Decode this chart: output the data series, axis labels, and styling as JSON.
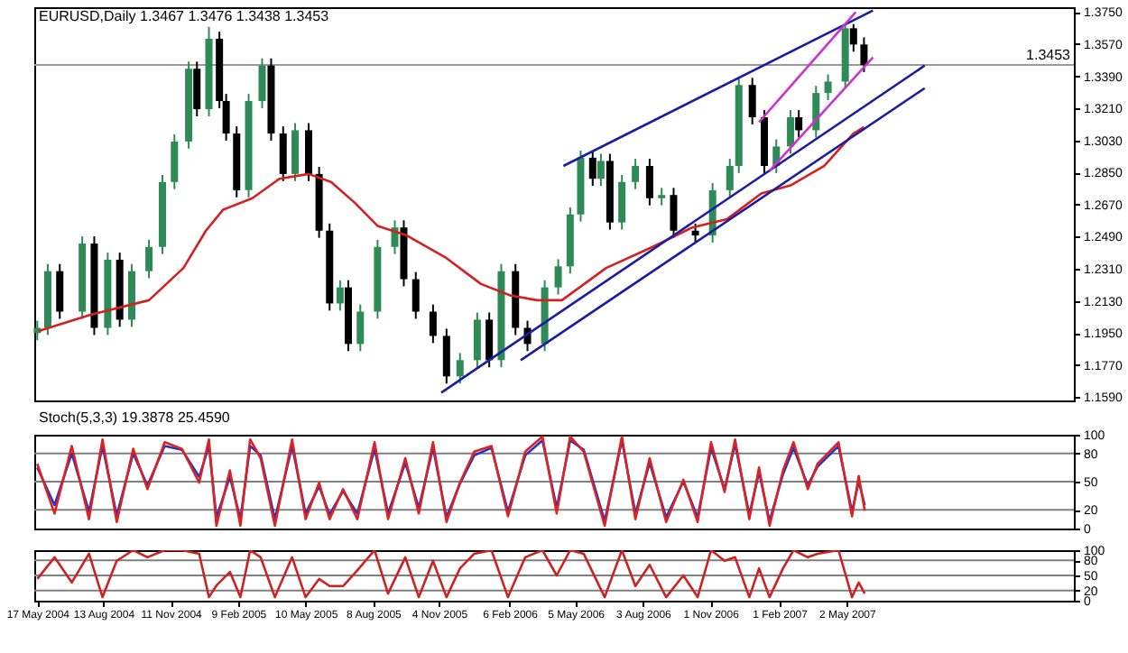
{
  "chart_data": [
    {
      "type": "candlestick",
      "title": "EURUSD,Daily  1.3467 1.3476 1.3438 1.3453",
      "tick_labels": "y",
      "xlim": [
        "2004-05-13",
        "2008-02-29"
      ],
      "ylim": [
        1.1572,
        1.3777
      ],
      "yticks": [
        {
          "value": 1.159,
          "label": "1.1590"
        },
        {
          "value": 1.177,
          "label": "1.1770"
        },
        {
          "value": 1.195,
          "label": "1.1950"
        },
        {
          "value": 1.213,
          "label": "1.2130"
        },
        {
          "value": 1.231,
          "label": "1.2310"
        },
        {
          "value": 1.249,
          "label": "1.2490"
        },
        {
          "value": 1.267,
          "label": "1.2670"
        },
        {
          "value": 1.285,
          "label": "1.2850"
        },
        {
          "value": 1.303,
          "label": "1.3030"
        },
        {
          "value": 1.321,
          "label": "1.3210"
        },
        {
          "value": 1.339,
          "label": "1.3390"
        },
        {
          "value": 1.357,
          "label": "1.3570"
        },
        {
          "value": 1.375,
          "label": "1.3750"
        }
      ],
      "x": [
        "2004-05-17",
        "2004-05-31",
        "2004-06-16",
        "2004-07-16",
        "2004-08-01",
        "2004-08-19",
        "2004-09-04",
        "2004-09-20",
        "2004-10-13",
        "2004-10-31",
        "2004-11-16",
        "2004-12-05",
        "2004-12-16",
        "2005-01-01",
        "2005-01-15",
        "2005-01-24",
        "2005-02-07",
        "2005-02-23",
        "2005-03-13",
        "2005-03-25",
        "2005-04-10",
        "2005-04-26",
        "2005-05-14",
        "2005-05-28",
        "2005-06-11",
        "2005-06-25",
        "2005-07-06",
        "2005-07-22",
        "2005-08-14",
        "2005-09-06",
        "2005-09-18",
        "2005-10-04",
        "2005-10-27",
        "2005-11-14",
        "2005-12-02",
        "2005-12-25",
        "2006-01-10",
        "2006-01-26",
        "2006-02-14",
        "2006-03-02",
        "2006-03-25",
        "2006-04-12",
        "2006-04-28",
        "2006-05-12",
        "2006-05-28",
        "2006-06-08",
        "2006-06-20",
        "2006-07-06",
        "2006-07-24",
        "2006-08-12",
        "2006-08-28",
        "2006-09-13",
        "2006-10-12",
        "2006-11-04",
        "2006-11-27",
        "2006-12-09",
        "2006-12-27",
        "2007-01-12",
        "2007-01-28",
        "2007-02-16",
        "2007-02-27",
        "2007-03-22",
        "2007-04-07",
        "2007-04-30",
        "2007-05-11",
        "2007-05-25"
      ],
      "ohlc": [
        [
          1.195,
          1.2019,
          1.191,
          1.1979
        ],
        [
          1.1979,
          1.2337,
          1.1939,
          1.2297
        ],
        [
          1.2297,
          1.2337,
          1.203,
          1.207
        ],
        [
          1.207,
          1.2492,
          1.203,
          1.2452
        ],
        [
          1.2452,
          1.2492,
          1.1939,
          1.1979
        ],
        [
          1.1979,
          1.2401,
          1.1939,
          1.2361
        ],
        [
          1.2361,
          1.2401,
          1.1985,
          1.2025
        ],
        [
          1.2025,
          1.2337,
          1.1985,
          1.2297
        ],
        [
          1.2297,
          1.2473,
          1.2257,
          1.2433
        ],
        [
          1.2433,
          1.2837,
          1.2393,
          1.2797
        ],
        [
          1.2797,
          1.3064,
          1.2757,
          1.3024
        ],
        [
          1.3024,
          1.3472,
          1.2984,
          1.3432
        ],
        [
          1.3432,
          1.3472,
          1.3165,
          1.3205
        ],
        [
          1.3205,
          1.3667,
          1.3165,
          1.36
        ],
        [
          1.36,
          1.364,
          1.3211,
          1.3251
        ],
        [
          1.3251,
          1.3291,
          1.3029,
          1.3069
        ],
        [
          1.3069,
          1.3109,
          1.2711,
          1.2751
        ],
        [
          1.2751,
          1.3291,
          1.2711,
          1.3251
        ],
        [
          1.3251,
          1.349,
          1.3211,
          1.345
        ],
        [
          1.345,
          1.349,
          1.3029,
          1.3069
        ],
        [
          1.3069,
          1.3109,
          1.2802,
          1.2842
        ],
        [
          1.2842,
          1.3127,
          1.2802,
          1.3087
        ],
        [
          1.3087,
          1.3127,
          1.2802,
          1.2842
        ],
        [
          1.2842,
          1.2882,
          1.2484,
          1.2524
        ],
        [
          1.2524,
          1.2564,
          1.2076,
          1.2116
        ],
        [
          1.2116,
          1.2246,
          1.2076,
          1.2206
        ],
        [
          1.2206,
          1.2246,
          1.1849,
          1.1889
        ],
        [
          1.1889,
          1.211,
          1.1849,
          1.207
        ],
        [
          1.207,
          1.2473,
          1.203,
          1.2433
        ],
        [
          1.2433,
          1.2582,
          1.2393,
          1.2542
        ],
        [
          1.2542,
          1.2582,
          1.2212,
          1.2252
        ],
        [
          1.2252,
          1.2292,
          1.203,
          1.207
        ],
        [
          1.207,
          1.211,
          1.1894,
          1.1934
        ],
        [
          1.1934,
          1.1974,
          1.1667,
          1.1707
        ],
        [
          1.1707,
          1.1838,
          1.1667,
          1.1798
        ],
        [
          1.1798,
          1.2065,
          1.1758,
          1.2025
        ],
        [
          1.2025,
          1.2065,
          1.1758,
          1.1798
        ],
        [
          1.1798,
          1.2337,
          1.1758,
          1.2297
        ],
        [
          1.2297,
          1.2337,
          1.1939,
          1.1979
        ],
        [
          1.1979,
          1.2019,
          1.1849,
          1.1889
        ],
        [
          1.1889,
          1.2246,
          1.1849,
          1.2206
        ],
        [
          1.2206,
          1.2364,
          1.2166,
          1.2324
        ],
        [
          1.2324,
          1.2655,
          1.2284,
          1.2615
        ],
        [
          1.2615,
          1.2973,
          1.2575,
          1.2933
        ],
        [
          1.2933,
          1.2973,
          1.2775,
          1.2815
        ],
        [
          1.2815,
          1.2955,
          1.2775,
          1.2915
        ],
        [
          1.2915,
          1.2955,
          1.253,
          1.257
        ],
        [
          1.257,
          1.2837,
          1.253,
          1.2797
        ],
        [
          1.2797,
          1.2927,
          1.2757,
          1.2887
        ],
        [
          1.2887,
          1.2927,
          1.2666,
          1.2706
        ],
        [
          1.2706,
          1.2764,
          1.2666,
          1.2724
        ],
        [
          1.2724,
          1.2764,
          1.2484,
          1.2524
        ],
        [
          1.2524,
          1.2564,
          1.2457,
          1.2497
        ],
        [
          1.2497,
          1.2791,
          1.2457,
          1.2751
        ],
        [
          1.2751,
          1.2927,
          1.2711,
          1.2887
        ],
        [
          1.2887,
          1.3381,
          1.2847,
          1.3341
        ],
        [
          1.3341,
          1.3381,
          1.312,
          1.316
        ],
        [
          1.316,
          1.32,
          1.2847,
          1.2887
        ],
        [
          1.2887,
          1.3036,
          1.2847,
          1.2996
        ],
        [
          1.2996,
          1.32,
          1.2956,
          1.316
        ],
        [
          1.316,
          1.32,
          1.3047,
          1.3087
        ],
        [
          1.3087,
          1.3336,
          1.3047,
          1.3296
        ],
        [
          1.3296,
          1.34,
          1.3256,
          1.336
        ],
        [
          1.336,
          1.3682,
          1.332,
          1.3659
        ],
        [
          1.3659,
          1.3682,
          1.3528,
          1.3568
        ],
        [
          1.3568,
          1.3608,
          1.3413,
          1.3453
        ]
      ],
      "colors": [
        "#2e8b57",
        "#2e8b57",
        "#000000",
        "#2e8b57",
        "#000000",
        "#2e8b57",
        "#000000",
        "#2e8b57",
        "#2e8b57",
        "#2e8b57",
        "#2e8b57",
        "#2e8b57",
        "#000000",
        "#2e8b57",
        "#000000",
        "#000000",
        "#000000",
        "#2e8b57",
        "#2e8b57",
        "#000000",
        "#000000",
        "#2e8b57",
        "#000000",
        "#000000",
        "#000000",
        "#2e8b57",
        "#000000",
        "#2e8b57",
        "#2e8b57",
        "#2e8b57",
        "#000000",
        "#000000",
        "#000000",
        "#000000",
        "#2e8b57",
        "#2e8b57",
        "#000000",
        "#2e8b57",
        "#000000",
        "#000000",
        "#2e8b57",
        "#2e8b57",
        "#2e8b57",
        "#2e8b57",
        "#000000",
        "#2e8b57",
        "#000000",
        "#2e8b57",
        "#2e8b57",
        "#000000",
        "#2e8b57",
        "#000000",
        "#000000",
        "#2e8b57",
        "#2e8b57",
        "#2e8b57",
        "#000000",
        "#000000",
        "#2e8b57",
        "#2e8b57",
        "#000000",
        "#2e8b57",
        "#2e8b57",
        "#2e8b57",
        "#000000",
        "#000000"
      ],
      "series": [
        {
          "type": "line",
          "color": "#d42020",
          "x": [
            "2004-05-19",
            "2004-07-27",
            "2004-10-13",
            "2004-11-28",
            "2004-12-28",
            "2005-01-20",
            "2005-02-28",
            "2005-04-05",
            "2005-05-14",
            "2005-06-13",
            "2005-07-15",
            "2005-08-14",
            "2005-09-22",
            "2005-11-14",
            "2005-12-30",
            "2006-02-07",
            "2006-03-15",
            "2006-04-17",
            "2006-06-15",
            "2006-08-16",
            "2006-10-08",
            "2006-11-23",
            "2007-01-08",
            "2007-02-16",
            "2007-04-02",
            "2007-05-11",
            "2007-05-25"
          ],
          "values": [
            1.1961,
            1.2052,
            1.2134,
            1.2315,
            1.2524,
            1.2642,
            1.2706,
            1.2815,
            1.2842,
            1.2797,
            1.2679,
            1.2551,
            1.2497,
            1.237,
            1.2225,
            1.2161,
            1.2134,
            1.2134,
            1.2315,
            1.2433,
            1.2542,
            1.2588,
            1.2733,
            1.2778,
            1.2887,
            1.3069,
            1.3105
          ]
        },
        {
          "type": "line",
          "color": "#1c1ca0",
          "x": [
            "2006-04-19",
            "2007-06-06"
          ],
          "values": [
            1.2887,
            1.3759
          ]
        },
        {
          "type": "line",
          "color": "#1c1ca0",
          "x": [
            "2005-11-07",
            "2007-08-14"
          ],
          "values": [
            1.1616,
            1.345
          ]
        },
        {
          "type": "line",
          "color": "#1c1ca0",
          "x": [
            "2006-02-21",
            "2007-08-14"
          ],
          "values": [
            1.1798,
            1.3323
          ]
        },
        {
          "type": "line",
          "color": "#cc33cc",
          "x": [
            "2007-01-05",
            "2007-05-14"
          ],
          "values": [
            1.3133,
            1.375
          ]
        },
        {
          "type": "line",
          "color": "#cc33cc",
          "x": [
            "2007-01-19",
            "2007-06-06"
          ],
          "values": [
            1.286,
            1.3496
          ]
        }
      ],
      "ref_lines": [
        {
          "axis": "y",
          "value": 1.3453,
          "label": "1.3453",
          "color": "#9a9a9a"
        }
      ]
    },
    {
      "type": "line",
      "title": "Stoch(5,3,3) 19.3878 25.4590",
      "tick_labels": "y",
      "xlim": [
        "2004-05-13",
        "2008-02-29"
      ],
      "ylim": [
        0,
        100
      ],
      "yticks": [
        0,
        20,
        50,
        80,
        100
      ],
      "x": [
        "2004-05-17",
        "2004-06-09",
        "2004-07-02",
        "2004-07-25",
        "2004-08-12",
        "2004-08-31",
        "2004-09-22",
        "2004-10-11",
        "2004-11-03",
        "2004-11-26",
        "2004-12-19",
        "2005-01-01",
        "2005-01-11",
        "2005-01-29",
        "2005-02-12",
        "2005-02-25",
        "2005-03-11",
        "2005-03-30",
        "2005-04-22",
        "2005-05-10",
        "2005-05-28",
        "2005-06-11",
        "2005-06-29",
        "2005-07-18",
        "2005-08-10",
        "2005-08-28",
        "2005-09-20",
        "2005-10-08",
        "2005-10-27",
        "2005-11-14",
        "2005-12-02",
        "2005-12-21",
        "2006-01-13",
        "2006-02-04",
        "2006-02-27",
        "2006-03-22",
        "2006-04-10",
        "2006-04-28",
        "2006-05-16",
        "2006-06-13",
        "2006-07-06",
        "2006-07-24",
        "2006-08-12",
        "2006-09-03",
        "2006-09-26",
        "2006-10-15",
        "2006-11-02",
        "2006-11-20",
        "2006-12-04",
        "2006-12-23",
        "2007-01-05",
        "2007-01-19",
        "2007-02-06",
        "2007-02-20",
        "2007-03-11",
        "2007-03-24",
        "2007-04-21",
        "2007-05-09",
        "2007-05-18",
        "2007-05-26"
      ],
      "series": [
        {
          "color": "#2233cc",
          "values": [
            65,
            25,
            80,
            18,
            88,
            14,
            80,
            46,
            88,
            84,
            55,
            88,
            12,
            55,
            10,
            88,
            78,
            10,
            88,
            16,
            45,
            15,
            40,
            16,
            85,
            16,
            70,
            22,
            86,
            12,
            48,
            78,
            86,
            18,
            78,
            94,
            22,
            94,
            84,
            8,
            94,
            16,
            70,
            12,
            50,
            12,
            86,
            42,
            90,
            15,
            60,
            8,
            58,
            86,
            46,
            66,
            88,
            18,
            50,
            25
          ]
        },
        {
          "color": "#dd2222",
          "values": [
            69,
            16,
            88,
            10,
            95,
            7,
            85,
            42,
            92,
            85,
            49,
            95,
            3,
            62,
            3,
            95,
            75,
            3,
            95,
            10,
            49,
            10,
            42,
            10,
            92,
            10,
            75,
            16,
            92,
            7,
            49,
            82,
            88,
            13,
            82,
            98,
            16,
            98,
            82,
            3,
            98,
            10,
            75,
            7,
            52,
            7,
            92,
            39,
            95,
            10,
            65,
            3,
            62,
            92,
            42,
            69,
            92,
            13,
            56,
            19
          ]
        }
      ],
      "ref_lines": [
        {
          "axis": "y",
          "value": 80,
          "color": "#808080"
        },
        {
          "axis": "y",
          "value": 50,
          "color": "#808080"
        },
        {
          "axis": "y",
          "value": 20,
          "color": "#808080"
        }
      ]
    },
    {
      "type": "line",
      "xlim": [
        "2004-05-13",
        "2008-02-29"
      ],
      "ylim": [
        0,
        100
      ],
      "yticks": [
        0,
        20,
        50,
        80,
        100
      ],
      "xticks": [
        {
          "value": "2004-05-17",
          "label": "17 May 2004"
        },
        {
          "value": "2004-08-13",
          "label": "13 Aug 2004"
        },
        {
          "value": "2004-11-11",
          "label": "11 Nov 2004"
        },
        {
          "value": "2005-02-09",
          "label": "9 Feb 2005"
        },
        {
          "value": "2005-05-10",
          "label": "10 May 2005"
        },
        {
          "value": "2005-08-08",
          "label": "8 Aug 2005"
        },
        {
          "value": "2005-11-04",
          "label": "4 Nov 2005"
        },
        {
          "value": "2006-02-06",
          "label": "6 Feb 2006"
        },
        {
          "value": "2006-05-05",
          "label": "5 May 2006"
        },
        {
          "value": "2006-08-03",
          "label": "3 Aug 2006"
        },
        {
          "value": "2006-11-01",
          "label": "1 Nov 2006"
        },
        {
          "value": "2007-02-01",
          "label": "1 Feb 2007"
        },
        {
          "value": "2007-05-02",
          "label": "2 May 2007"
        }
      ],
      "x": [
        "2004-05-17",
        "2004-06-09",
        "2004-07-02",
        "2004-07-25",
        "2004-08-12",
        "2004-08-31",
        "2004-09-22",
        "2004-10-11",
        "2004-11-03",
        "2004-11-26",
        "2004-12-19",
        "2005-01-01",
        "2005-01-11",
        "2005-01-29",
        "2005-02-12",
        "2005-02-25",
        "2005-03-11",
        "2005-03-30",
        "2005-04-22",
        "2005-05-10",
        "2005-05-28",
        "2005-06-11",
        "2005-06-29",
        "2005-07-18",
        "2005-08-10",
        "2005-08-28",
        "2005-09-20",
        "2005-10-08",
        "2005-10-27",
        "2005-11-14",
        "2005-12-02",
        "2005-12-21",
        "2006-01-13",
        "2006-02-04",
        "2006-02-27",
        "2006-03-22",
        "2006-04-10",
        "2006-04-28",
        "2006-05-16",
        "2006-06-13",
        "2006-07-06",
        "2006-07-24",
        "2006-08-12",
        "2006-09-03",
        "2006-09-26",
        "2006-10-15",
        "2006-11-02",
        "2006-11-20",
        "2006-12-04",
        "2006-12-23",
        "2007-01-05",
        "2007-01-19",
        "2007-02-06",
        "2007-02-20",
        "2007-03-11",
        "2007-03-24",
        "2007-04-21",
        "2007-05-09",
        "2007-05-18",
        "2007-05-26"
      ],
      "series": [
        {
          "color": "#cc2222",
          "values": [
            43,
            86,
            36,
            93,
            7,
            79,
            100,
            86,
            100,
            100,
            93,
            7,
            30,
            57,
            7,
            100,
            86,
            7,
            86,
            7,
            43,
            29,
            29,
            60,
            100,
            14,
            86,
            7,
            79,
            7,
            64,
            93,
            100,
            7,
            86,
            100,
            50,
            100,
            93,
            7,
            100,
            29,
            71,
            7,
            50,
            7,
            100,
            79,
            86,
            7,
            64,
            7,
            64,
            100,
            86,
            93,
            100,
            7,
            36,
            14
          ]
        }
      ],
      "ref_lines": [
        {
          "axis": "y",
          "value": 80,
          "color": "#808080"
        },
        {
          "axis": "y",
          "value": 50,
          "color": "#808080"
        },
        {
          "axis": "y",
          "value": 20,
          "color": "#808080"
        }
      ]
    }
  ]
}
